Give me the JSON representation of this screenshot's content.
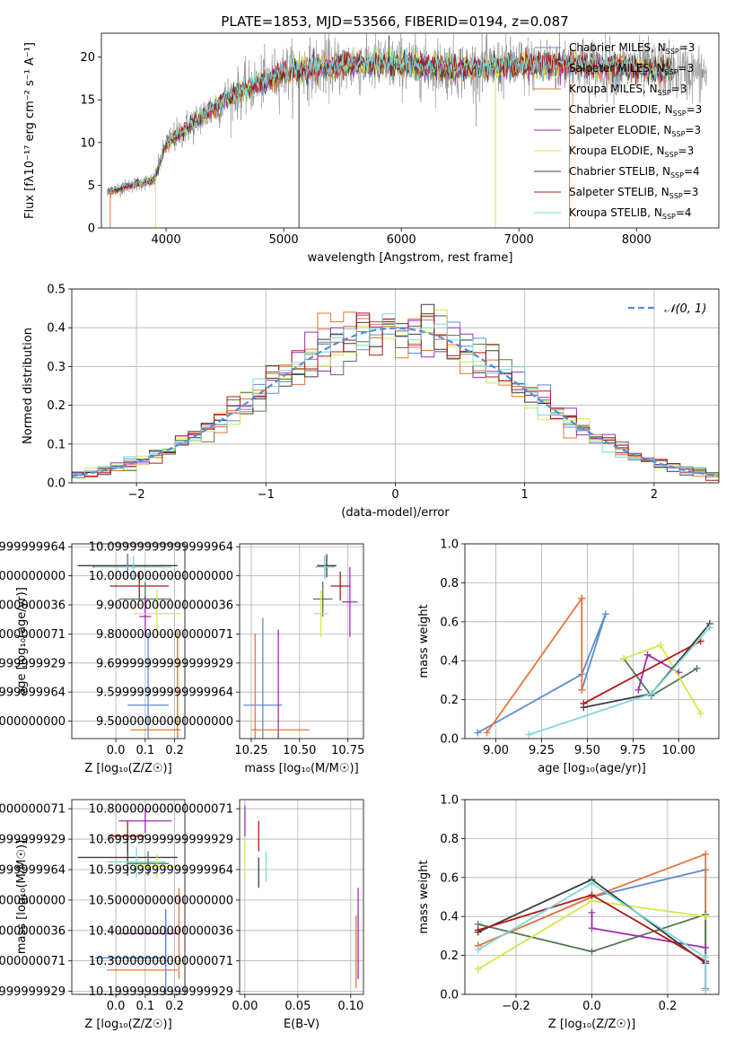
{
  "figure": {
    "title": "PLATE=1853, MJD=53566, FIBERID=0194, z=0.087"
  },
  "colors": {
    "chabrier_miles": "#5b8bd6",
    "salpeter_miles": "#e8743b",
    "kroupa_miles": "#d87832",
    "chabrier_elodie": "#4f7a4f",
    "salpeter_elodie": "#9b2fae",
    "kroupa_elodie": "#d4e84a",
    "chabrier_stelib": "#3c3c3c",
    "salpeter_stelib": "#b01818",
    "kroupa_stelib": "#7fd6d8",
    "normal": "#5b8bd6",
    "grid": "#b0b0b0"
  },
  "chart_data": [
    {
      "id": "spectrum",
      "type": "line",
      "title": "PLATE=1853, MJD=53566, FIBERID=0194, z=0.087",
      "xlabel": "wavelength [Angstrom, rest frame]",
      "ylabel": "Flux [f$_\\lambda$10$^{-17}$ erg cm$^{-2}$ s$^{-1}$ A$^{-1}$]",
      "ylabel_display": "Flux [fλ10⁻¹⁷ erg cm⁻² s⁻¹ A⁻¹]",
      "xlim": [
        3450,
        8700
      ],
      "ylim": [
        0,
        22.8
      ],
      "xticks": [
        4000,
        5000,
        6000,
        7000,
        8000
      ],
      "yticks": [
        0,
        5,
        10,
        15,
        20
      ],
      "grid": false,
      "legend_position": "top-right",
      "legend": [
        {
          "label": "Chabrier MILES, N$_{SSP}$=3",
          "text": "Chabrier MILES, N",
          "sub": "SSP",
          "tail": "=3",
          "color_key": "chabrier_miles"
        },
        {
          "label": "Salpeter MILES, N$_{SSP}$=3",
          "text": "Salpeter MILES, N",
          "sub": "SSP",
          "tail": "=3",
          "color_key": "salpeter_miles"
        },
        {
          "label": "Kroupa MILES, N$_{SSP}$=3",
          "text": "Kroupa MILES, N",
          "sub": "SSP",
          "tail": "=3",
          "color_key": "kroupa_miles"
        },
        {
          "label": "Chabrier ELODIE, N$_{SSP}$=3",
          "text": "Chabrier ELODIE, N",
          "sub": "SSP",
          "tail": "=3",
          "color_key": "chabrier_elodie"
        },
        {
          "label": "Salpeter ELODIE, N$_{SSP}$=3",
          "text": "Salpeter ELODIE, N",
          "sub": "SSP",
          "tail": "=3",
          "color_key": "salpeter_elodie"
        },
        {
          "label": "Kroupa ELODIE, N$_{SSP}$=3",
          "text": "Kroupa ELODIE, N",
          "sub": "SSP",
          "tail": "=3",
          "color_key": "kroupa_elodie"
        },
        {
          "label": "Chabrier STELIB, N$_{SSP}$=4",
          "text": "Chabrier STELIB, N",
          "sub": "SSP",
          "tail": "=4",
          "color_key": "chabrier_stelib"
        },
        {
          "label": "Salpeter STELIB, N$_{SSP}$=3",
          "text": "Salpeter STELIB, N",
          "sub": "SSP",
          "tail": "=3",
          "color_key": "salpeter_stelib"
        },
        {
          "label": "Kroupa STELIB, N$_{SSP}$=4",
          "text": "Kroupa STELIB, N",
          "sub": "SSP",
          "tail": "=4",
          "color_key": "kroupa_stelib"
        }
      ],
      "continuum": {
        "wavelength": [
          3500,
          3700,
          3900,
          4000,
          4200,
          4500,
          4800,
          5000,
          5300,
          5600,
          5900,
          6200,
          6600,
          7000,
          7400,
          7800,
          8200,
          8600
        ],
        "flux": [
          4.2,
          5.0,
          5.6,
          9.8,
          12.0,
          15.0,
          17.0,
          18.2,
          18.8,
          19.1,
          19.3,
          19.0,
          18.6,
          19.0,
          19.2,
          18.8,
          18.5,
          18.0
        ]
      },
      "spikes": [
        {
          "x": 3525,
          "y": 0,
          "color_key": "salpeter_miles"
        },
        {
          "x": 3910,
          "y": 0,
          "color_key": "kroupa_elodie"
        },
        {
          "x": 5130,
          "y": 0,
          "color_key": "chabrier_stelib"
        },
        {
          "x": 5895,
          "y": 22.5,
          "color_key": "chabrier_stelib"
        },
        {
          "x": 6800,
          "y": 0,
          "color_key": "kroupa_elodie"
        },
        {
          "x": 7430,
          "y": 0,
          "color_key": "salpeter_miles"
        }
      ],
      "model_series_range": [
        3500,
        8300
      ],
      "data_series_range": [
        3500,
        8600
      ]
    },
    {
      "id": "residuals",
      "type": "histogram",
      "xlabel": "(data-model)/error",
      "ylabel": "Normed distribution",
      "xlim": [
        -2.5,
        2.5
      ],
      "ylim": [
        0,
        0.5
      ],
      "xticks": [
        -2,
        -1,
        0,
        1,
        2
      ],
      "yticks": [
        0.0,
        0.1,
        0.2,
        0.3,
        0.4,
        0.5
      ],
      "grid": true,
      "bin_width": 0.1,
      "legend_position": "top-right",
      "normal_label": "$\\mathcal{N}(0,1)$",
      "normal_label_display": "𝒩(0, 1)"
    },
    {
      "id": "age_vs_Z",
      "type": "scatter",
      "xlabel": "Z [log$_{10}$($Z/Z_\\odot$)]",
      "xlabel_display": "Z [log₁₀(Z/Z☉)]",
      "ylabel": "age  [log$_{10}$($age/yr$)]",
      "ylabel_display": "age  [log₁₀(age/yr)]",
      "xlim": [
        -0.15,
        0.235
      ],
      "ylim": [
        9.44,
        10.11
      ],
      "xticks": [
        0.0,
        0.1,
        0.2
      ],
      "yticks": [
        9.5,
        9.6,
        9.7,
        9.8,
        9.9,
        10.0,
        10.1
      ],
      "grid": true,
      "points": [
        {
          "model": "chabrier_stelib",
          "x": 0.04,
          "xerr": 0.17,
          "y": 10.035,
          "yerr": 0.04
        },
        {
          "model": "chabrier_miles",
          "x": 0.04,
          "xerr": 0.12,
          "y": 10.03,
          "yerr": 0.04
        },
        {
          "model": "kroupa_stelib",
          "x": 0.06,
          "xerr": 0.13,
          "y": 10.03,
          "yerr": 0.04
        },
        {
          "model": "salpeter_stelib",
          "x": 0.08,
          "xerr": 0.1,
          "y": 9.965,
          "yerr": 0.05
        },
        {
          "model": "chabrier_elodie",
          "x": 0.1,
          "xerr": 0.09,
          "y": 9.92,
          "yerr": 0.06
        },
        {
          "model": "salpeter_elodie",
          "x": 0.1,
          "xerr": 0.02,
          "y": 9.86,
          "yerr": 0.07
        },
        {
          "model": "kroupa_elodie",
          "x": 0.14,
          "xerr": 0.08,
          "y": 9.87,
          "yerr": 0.08
        },
        {
          "model": "chabrier_miles",
          "x": 0.11,
          "xerr": 0.07,
          "y": 9.555,
          "yerr": 0.25
        },
        {
          "model": "salpeter_miles",
          "x": 0.13,
          "xerr": 0.08,
          "y": 9.47,
          "yerr": 0.0
        },
        {
          "model": "kroupa_miles",
          "x": 0.21,
          "xerr": 0.01,
          "y": 9.47,
          "yerr": 0.34
        }
      ]
    },
    {
      "id": "age_vs_mass",
      "type": "scatter",
      "xlabel": "mass [log$_{10}$($M/M_\\odot$)]",
      "xlabel_display": "mass [log₁₀(M/M☉)]",
      "ylabel": "",
      "xlim": [
        10.19,
        10.83
      ],
      "ylim": [
        9.44,
        10.11
      ],
      "xticks": [
        10.25,
        10.5,
        10.75
      ],
      "yticks": [
        9.5,
        9.6,
        9.7,
        9.8,
        9.9,
        10.0,
        10.1
      ],
      "grid": true,
      "points": [
        {
          "model": "chabrier_stelib",
          "x": 10.64,
          "xerr": 0.05,
          "y": 10.035,
          "yerr": 0.04
        },
        {
          "model": "chabrier_miles",
          "x": 10.63,
          "xerr": 0.05,
          "y": 10.03,
          "yerr": 0.04
        },
        {
          "model": "kroupa_stelib",
          "x": 10.63,
          "xerr": 0.05,
          "y": 10.03,
          "yerr": 0.04
        },
        {
          "model": "salpeter_stelib",
          "x": 10.71,
          "xerr": 0.05,
          "y": 9.965,
          "yerr": 0.05
        },
        {
          "model": "chabrier_elodie",
          "x": 10.62,
          "xerr": 0.05,
          "y": 9.92,
          "yerr": 0.06
        },
        {
          "model": "salpeter_elodie",
          "x": 10.76,
          "xerr": 0.04,
          "y": 9.91,
          "yerr": 0.12
        },
        {
          "model": "kroupa_elodie",
          "x": 10.61,
          "xerr": 0.04,
          "y": 9.87,
          "yerr": 0.08
        },
        {
          "model": "chabrier_miles",
          "x": 10.31,
          "xerr": 0.1,
          "y": 9.555,
          "yerr": 0.3
        },
        {
          "model": "salpeter_elodie",
          "x": 10.39,
          "xerr": 0.0,
          "y": 9.555,
          "yerr": 0.26
        },
        {
          "model": "salpeter_miles",
          "x": 10.27,
          "xerr": 0.0,
          "y": 9.47,
          "yerr": 0.33
        },
        {
          "model": "salpeter_miles",
          "x": 10.4,
          "xerr": 0.15,
          "y": 9.47,
          "yerr": 0.0
        }
      ]
    },
    {
      "id": "massweight_vs_age",
      "type": "line",
      "xlabel": "age  [log$_{10}$($age/yr$)]",
      "xlabel_display": "age  [log₁₀(age/yr)]",
      "ylabel": "mass weight",
      "xlim": [
        8.83,
        10.22
      ],
      "ylim": [
        0,
        1.0
      ],
      "xticks": [
        9.0,
        9.25,
        9.5,
        9.75,
        10.0
      ],
      "yticks": [
        0.0,
        0.2,
        0.4,
        0.6,
        0.8,
        1.0
      ],
      "grid": true,
      "series": [
        {
          "model": "chabrier_miles",
          "x": [
            8.9,
            9.47,
            9.6,
            9.47
          ],
          "y": [
            0.03,
            0.33,
            0.64,
            0.25
          ]
        },
        {
          "model": "salpeter_miles",
          "x": [
            8.95,
            9.47,
            9.47,
            9.47
          ],
          "y": [
            0.03,
            0.72,
            0.72,
            0.25
          ]
        },
        {
          "model": "chabrier_elodie",
          "x": [
            9.7,
            9.85,
            10.1
          ],
          "y": [
            0.41,
            0.22,
            0.36
          ]
        },
        {
          "model": "salpeter_elodie",
          "x": [
            9.78,
            9.83,
            10.0
          ],
          "y": [
            0.25,
            0.43,
            0.34
          ]
        },
        {
          "model": "kroupa_elodie",
          "x": [
            9.7,
            9.9,
            10.12
          ],
          "y": [
            0.41,
            0.48,
            0.13
          ]
        },
        {
          "model": "chabrier_stelib",
          "x": [
            9.48,
            9.85,
            10.17
          ],
          "y": [
            0.16,
            0.23,
            0.59
          ]
        },
        {
          "model": "salpeter_stelib",
          "x": [
            9.48,
            10.12
          ],
          "y": [
            0.18,
            0.5
          ]
        },
        {
          "model": "kroupa_stelib",
          "x": [
            9.18,
            9.85,
            10.17
          ],
          "y": [
            0.02,
            0.23,
            0.57
          ]
        }
      ]
    },
    {
      "id": "mass_vs_Z",
      "type": "scatter",
      "xlabel": "Z [log$_{10}$($Z/Z_\\odot$)]",
      "xlabel_display": "Z [log₁₀(Z/Z☉)]",
      "ylabel": "mass [log$_{10}$($M/M_\\odot$)]",
      "ylabel_display": "mass [log₁₀(M/M☉)]",
      "xlim": [
        -0.15,
        0.235
      ],
      "ylim": [
        10.19,
        10.83
      ],
      "xticks": [
        0.0,
        0.1,
        0.2
      ],
      "yticks": [
        10.2,
        10.3,
        10.4,
        10.5,
        10.6,
        10.7,
        10.8
      ],
      "grid": true,
      "points": [
        {
          "model": "salpeter_elodie",
          "x": 0.1,
          "xerr": 0.09,
          "y": 10.76,
          "yerr": 0.04
        },
        {
          "model": "salpeter_stelib",
          "x": 0.04,
          "xerr": 0.06,
          "y": 10.71,
          "yerr": 0.05
        },
        {
          "model": "chabrier_stelib",
          "x": 0.04,
          "xerr": 0.17,
          "y": 10.64,
          "yerr": 0.06
        },
        {
          "model": "kroupa_stelib",
          "x": 0.07,
          "xerr": 0.1,
          "y": 10.625,
          "yerr": 0.05
        },
        {
          "model": "chabrier_elodie",
          "x": 0.11,
          "xerr": 0.07,
          "y": 10.62,
          "yerr": 0.04
        },
        {
          "model": "kroupa_elodie",
          "x": 0.14,
          "xerr": 0.08,
          "y": 10.61,
          "yerr": 0.04
        },
        {
          "model": "chabrier_miles",
          "x": 0.17,
          "xerr": 0.0,
          "y": 10.39,
          "yerr": 0.08
        },
        {
          "model": "salpeter_elodie",
          "x": 0.11,
          "xerr": 0.1,
          "y": 10.39,
          "yerr": 0.0
        },
        {
          "model": "salpeter_miles",
          "x": 0.215,
          "xerr": 0.0,
          "y": 10.39,
          "yerr": 0.15
        },
        {
          "model": "chabrier_miles",
          "x": 0.05,
          "xerr": 0.12,
          "y": 10.31,
          "yerr": 0.0
        },
        {
          "model": "salpeter_miles",
          "x": 0.09,
          "xerr": 0.12,
          "y": 10.27,
          "yerr": 0.0
        },
        {
          "model": "chabrier_miles",
          "x": 0.17,
          "xerr": 0.0,
          "y": 10.31,
          "yerr": 0.16
        }
      ]
    },
    {
      "id": "mass_vs_ebv",
      "type": "scatter",
      "xlabel": "E(B-V)",
      "ylabel": "",
      "xlim": [
        -0.005,
        0.112
      ],
      "ylim": [
        10.19,
        10.83
      ],
      "xticks": [
        0.0,
        0.05,
        0.1
      ],
      "yticks": [
        10.2,
        10.3,
        10.4,
        10.5,
        10.6,
        10.7,
        10.8
      ],
      "grid": true,
      "points": [
        {
          "model": "salpeter_elodie",
          "x": 0.0,
          "xerr": 0.0,
          "y": 10.76,
          "yerr": 0.05
        },
        {
          "model": "kroupa_elodie",
          "x": 0.0,
          "xerr": 0.0,
          "y": 10.64,
          "yerr": 0.06
        },
        {
          "model": "salpeter_stelib",
          "x": 0.013,
          "xerr": 0.0,
          "y": 10.71,
          "yerr": 0.05
        },
        {
          "model": "chabrier_stelib",
          "x": 0.013,
          "xerr": 0.0,
          "y": 10.59,
          "yerr": 0.05
        },
        {
          "model": "kroupa_stelib",
          "x": 0.02,
          "xerr": 0.0,
          "y": 10.61,
          "yerr": 0.05
        },
        {
          "model": "salpeter_elodie",
          "x": 0.107,
          "xerr": 0.0,
          "y": 10.39,
          "yerr": 0.15
        },
        {
          "model": "salpeter_miles",
          "x": 0.105,
          "xerr": 0.0,
          "y": 10.33,
          "yerr": 0.12
        }
      ]
    },
    {
      "id": "massweight_vs_Z",
      "type": "line",
      "xlabel": "Z [log$_{10}$($Z/Z_\\odot$)]",
      "xlabel_display": "Z [log₁₀(Z/Z☉)]",
      "ylabel": "mass weight",
      "xlim": [
        -0.335,
        0.335
      ],
      "ylim": [
        0,
        1.0
      ],
      "xticks": [
        -0.2,
        0.0,
        0.2
      ],
      "yticks": [
        0.0,
        0.2,
        0.4,
        0.6,
        0.8,
        1.0
      ],
      "grid": true,
      "series": [
        {
          "model": "chabrier_miles",
          "x": [
            -0.3,
            0.0,
            0.3,
            0.3
          ],
          "y": [
            0.25,
            0.5,
            0.64,
            0.03
          ]
        },
        {
          "model": "salpeter_miles",
          "x": [
            -0.3,
            0.0,
            0.3,
            0.3
          ],
          "y": [
            0.25,
            0.5,
            0.72,
            0.03
          ]
        },
        {
          "model": "chabrier_elodie",
          "x": [
            -0.3,
            0.0,
            0.3,
            0.3
          ],
          "y": [
            0.36,
            0.22,
            0.41,
            0.16
          ]
        },
        {
          "model": "salpeter_elodie",
          "x": [
            0.0,
            0.0,
            0.3
          ],
          "y": [
            0.42,
            0.34,
            0.24
          ]
        },
        {
          "model": "kroupa_elodie",
          "x": [
            -0.3,
            0.0,
            0.3
          ],
          "y": [
            0.13,
            0.48,
            0.4
          ]
        },
        {
          "model": "chabrier_stelib",
          "x": [
            -0.3,
            0.0,
            0.3
          ],
          "y": [
            0.32,
            0.59,
            0.16
          ]
        },
        {
          "model": "salpeter_stelib",
          "x": [
            -0.3,
            0.0,
            0.3
          ],
          "y": [
            0.33,
            0.51,
            0.17
          ]
        },
        {
          "model": "kroupa_stelib",
          "x": [
            -0.3,
            0.0,
            0.3,
            0.3
          ],
          "y": [
            0.23,
            0.57,
            0.19,
            0.02
          ]
        }
      ]
    }
  ]
}
